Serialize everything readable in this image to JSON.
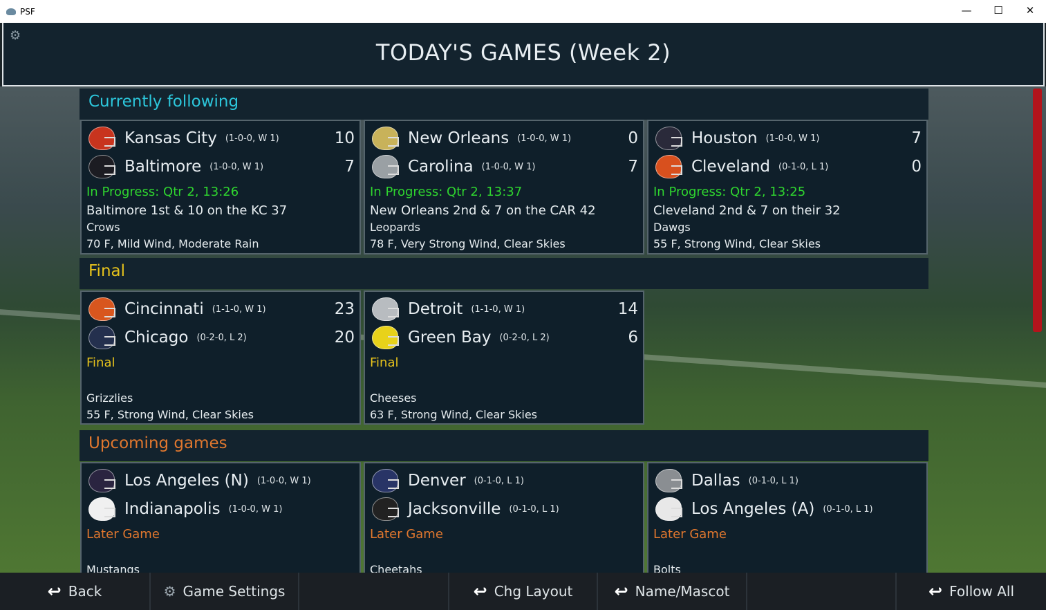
{
  "window": {
    "title": "PSF",
    "minimize": "—",
    "maximize": "☐",
    "close": "✕"
  },
  "header": {
    "title": "TODAY'S GAMES (Week 2)",
    "settings_icon": "gear-icon"
  },
  "colors": {
    "following": "#2cc6db",
    "final": "#e6c21c",
    "upcoming": "#e0772e",
    "in_progress": "#2fd52f",
    "status_final": "#e6c21c",
    "status_later": "#e0772e"
  },
  "sections": [
    {
      "title": "Currently following",
      "games": [
        {
          "home": {
            "name": "Kansas City",
            "record": "(1-0-0, W 1)",
            "score": "10",
            "color": "#c8341e"
          },
          "away": {
            "name": "Baltimore",
            "record": "(1-0-0, W 1)",
            "score": "7",
            "color": "#1c1c22"
          },
          "status": "In Progress: Qtr 2, 13:26",
          "situation": "Baltimore 1st & 10 on the KC 37",
          "mascot": "Crows",
          "weather": "70 F, Mild Wind, Moderate Rain"
        },
        {
          "home": {
            "name": "New Orleans",
            "record": "(1-0-0, W 1)",
            "score": "0",
            "color": "#c8b25a"
          },
          "away": {
            "name": "Carolina",
            "record": "(1-0-0, W 1)",
            "score": "7",
            "color": "#9aa0a4"
          },
          "status": "In Progress: Qtr 2, 13:37",
          "situation": "New Orleans 2nd & 7 on the CAR 42",
          "mascot": "Leopards",
          "weather": "78 F, Very Strong Wind, Clear Skies"
        },
        {
          "home": {
            "name": "Houston",
            "record": "(1-0-0, W 1)",
            "score": "7",
            "color": "#2a2a3a"
          },
          "away": {
            "name": "Cleveland",
            "record": "(0-1-0, L 1)",
            "score": "0",
            "color": "#d8501e"
          },
          "status": "In Progress: Qtr 2, 13:25",
          "situation": "Cleveland 2nd & 7 on their 32",
          "mascot": "Dawgs",
          "weather": "55 F, Strong Wind, Clear Skies"
        }
      ]
    },
    {
      "title": "Final",
      "games": [
        {
          "home": {
            "name": "Cincinnati",
            "record": "(1-1-0, W 1)",
            "score": "23",
            "color": "#d8561e"
          },
          "away": {
            "name": "Chicago",
            "record": "(0-2-0, L 2)",
            "score": "20",
            "color": "#24304e"
          },
          "status": "Final",
          "situation": "",
          "mascot": "Grizzlies",
          "weather": "55 F, Strong Wind, Clear Skies"
        },
        {
          "home": {
            "name": "Detroit",
            "record": "(1-1-0, W 1)",
            "score": "14",
            "color": "#b8bcc0"
          },
          "away": {
            "name": "Green Bay",
            "record": "(0-2-0, L 2)",
            "score": "6",
            "color": "#e8d21a"
          },
          "status": "Final",
          "situation": "",
          "mascot": "Cheeses",
          "weather": "63 F, Strong Wind, Clear Skies"
        }
      ]
    },
    {
      "title": "Upcoming games",
      "games": [
        {
          "home": {
            "name": "Los Angeles (N)",
            "record": "(1-0-0, W 1)",
            "score": "",
            "color": "#2a2440"
          },
          "away": {
            "name": "Indianapolis",
            "record": "(1-0-0, W 1)",
            "score": "",
            "color": "#f0f0f0"
          },
          "status": "Later Game",
          "situation": "",
          "mascot": "Mustangs",
          "weather": ""
        },
        {
          "home": {
            "name": "Denver",
            "record": "(0-1-0, L 1)",
            "score": "",
            "color": "#283466"
          },
          "away": {
            "name": "Jacksonville",
            "record": "(0-1-0, L 1)",
            "score": "",
            "color": "#222222"
          },
          "status": "Later Game",
          "situation": "",
          "mascot": "Cheetahs",
          "weather": ""
        },
        {
          "home": {
            "name": "Dallas",
            "record": "(0-1-0, L 1)",
            "score": "",
            "color": "#8a8e92"
          },
          "away": {
            "name": "Los Angeles (A)",
            "record": "(0-1-0, L 1)",
            "score": "",
            "color": "#e8e8e8"
          },
          "status": "Later Game",
          "situation": "",
          "mascot": "Bolts",
          "weather": ""
        }
      ]
    }
  ],
  "bottombar": {
    "back": "Back",
    "game_settings": "Game Settings",
    "chg_layout": "Chg Layout",
    "name_mascot": "Name/Mascot",
    "follow_all": "Follow All"
  }
}
